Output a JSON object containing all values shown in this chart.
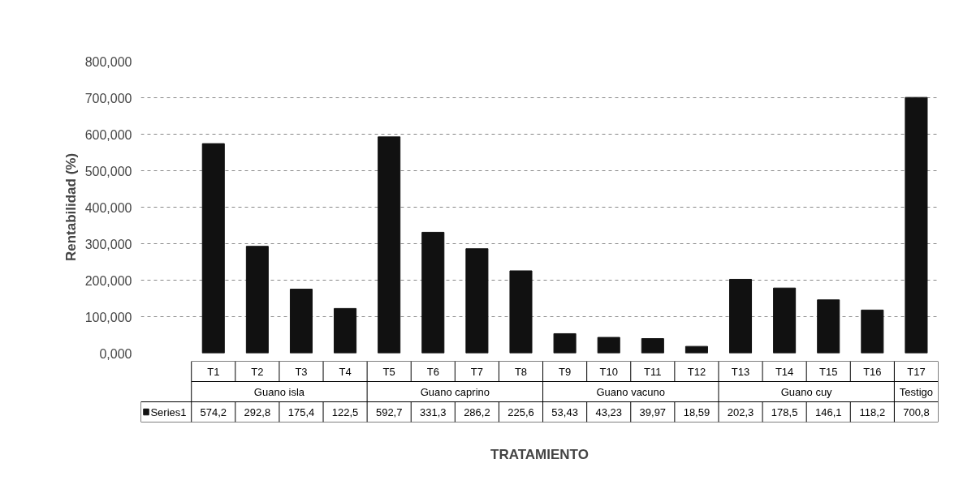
{
  "chart_data": {
    "type": "bar",
    "xlabel": "TRATAMIENTO",
    "ylabel": "Rentabilidad (%)",
    "categories": [
      "T1",
      "T2",
      "T3",
      "T4",
      "T5",
      "T6",
      "T7",
      "T8",
      "T9",
      "T10",
      "T11",
      "T12",
      "T13",
      "T14",
      "T15",
      "T16",
      "T17"
    ],
    "series": [
      {
        "name": "Series1",
        "color": "#111111",
        "values": [
          574.2,
          292.8,
          175.4,
          122.5,
          592.7,
          331.3,
          286.2,
          225.6,
          53.43,
          43.23,
          39.97,
          18.59,
          202.3,
          178.5,
          146.1,
          118.2,
          700.8
        ],
        "value_labels": [
          "574,2",
          "292,8",
          "175,4",
          "122,5",
          "592,7",
          "331,3",
          "286,2",
          "225,6",
          "53,43",
          "43,23",
          "39,97",
          "18,59",
          "202,3",
          "178,5",
          "146,1",
          "118,2",
          "700,8"
        ]
      }
    ],
    "annotations": [
      "Guano isla",
      "Guano caprino",
      "Guano vacuno",
      "Guano cuy",
      "Testigo"
    ],
    "ylim": [
      0,
      800
    ],
    "yticks": [
      {
        "value": 0,
        "label": "0,000"
      },
      {
        "value": 100,
        "label": "100,000"
      },
      {
        "value": 200,
        "label": "200,000"
      },
      {
        "value": 300,
        "label": "300,000"
      },
      {
        "value": 400,
        "label": "400,000"
      },
      {
        "value": 500,
        "label": "500,000"
      },
      {
        "value": 600,
        "label": "600,000"
      },
      {
        "value": 700,
        "label": "700,000"
      },
      {
        "value": 800,
        "label": "800,000"
      }
    ],
    "grid": "y",
    "legend": "bottom left"
  }
}
